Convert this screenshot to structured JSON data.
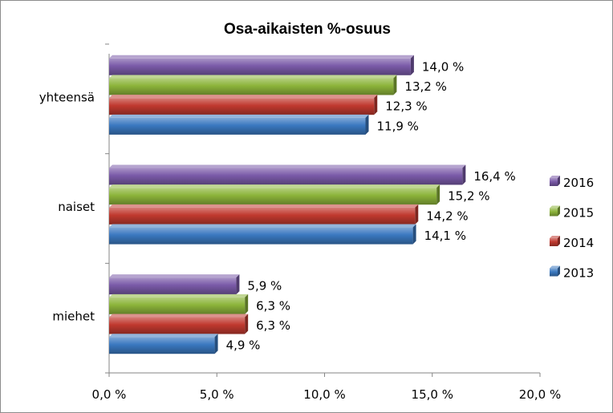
{
  "chart_data": {
    "type": "bar",
    "orientation": "horizontal",
    "title": "Osa-aikaisten %-osuus",
    "categories": [
      "yhteensä",
      "naiset",
      "miehet"
    ],
    "series": [
      {
        "name": "2016",
        "values": [
          14.0,
          16.4,
          5.9
        ],
        "color": "#7a5aa8",
        "value_labels": [
          "14,0 %",
          "16,4 %",
          "5,9 %"
        ]
      },
      {
        "name": "2015",
        "values": [
          13.2,
          15.2,
          6.3
        ],
        "color": "#8cb43a",
        "value_labels": [
          "13,2 %",
          "15,2 %",
          "6,3 %"
        ]
      },
      {
        "name": "2014",
        "values": [
          12.3,
          14.2,
          6.3
        ],
        "color": "#c0392f",
        "value_labels": [
          "12,3 %",
          "14,2 %",
          "6,3 %"
        ]
      },
      {
        "name": "2013",
        "values": [
          11.9,
          14.1,
          4.9
        ],
        "color": "#3a78c0",
        "value_labels": [
          "11,9 %",
          "14,1 %",
          "4,9 %"
        ]
      }
    ],
    "x_ticks": [
      0,
      5,
      10,
      15,
      20
    ],
    "x_tick_labels": [
      "0,0 %",
      "5,0 %",
      "10,0 %",
      "15,0 %",
      "20,0 %"
    ],
    "xlim": [
      0,
      20
    ],
    "grid": false,
    "legend_position": "right"
  }
}
